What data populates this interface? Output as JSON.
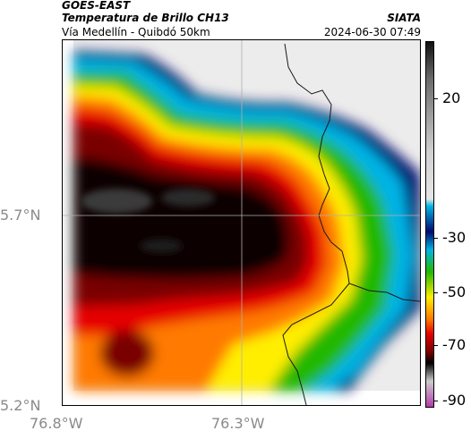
{
  "header": {
    "satellite": "GOES-EAST",
    "product": "Temperatura de Brillo CH13",
    "region": "Vía Medellín - Quibdó 50km",
    "agency": "SIATA",
    "datetime": "2024-06-30 07:49"
  },
  "map": {
    "lat_labels": [
      "5.7°N",
      "5.2°N"
    ],
    "lon_labels": [
      "76.8°W",
      "76.3°W"
    ]
  },
  "colorbar": {
    "tick_labels": [
      "20",
      "-30",
      "-50",
      "-70",
      "-90"
    ],
    "colors": {
      "coldest": "#b43caa",
      "very_cold": "#000000",
      "dark_red": "#7a0000",
      "red": "#e60000",
      "orange": "#ff7a00",
      "yellow": "#ffee00",
      "green": "#22b800",
      "cyan": "#00b4e6",
      "navy": "#000a6e",
      "warm_gray": "#e6e6e6"
    }
  }
}
